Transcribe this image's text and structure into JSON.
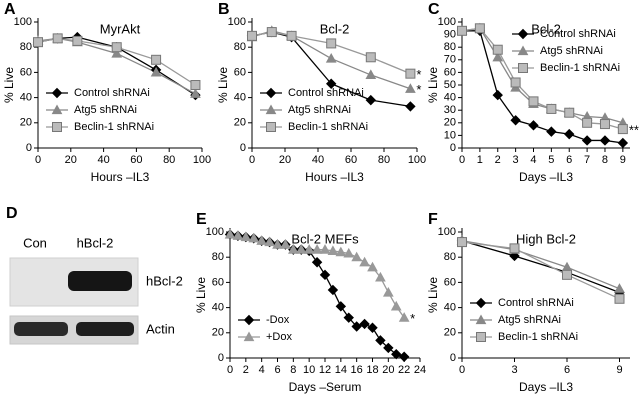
{
  "chart_data": [
    {
      "type": "line",
      "label": "A",
      "title": "MyrAkt",
      "xlabel": "Hours –IL3",
      "ylabel": "% Live",
      "x": [
        0,
        12,
        24,
        48,
        72,
        96
      ],
      "xlim": [
        0,
        100
      ],
      "xticks": [
        0,
        20,
        40,
        60,
        80,
        100
      ],
      "ylim": [
        0,
        100
      ],
      "yticks": [
        0,
        20,
        40,
        60,
        80,
        100
      ],
      "legend": "lower left",
      "series": [
        {
          "name": "Control shRNAi",
          "color": "#000000",
          "marker": "diamond",
          "values": [
            84,
            87,
            88,
            80,
            62,
            42
          ]
        },
        {
          "name": "Atg5 shRNAi",
          "color": "#888888",
          "marker": "triangle",
          "values": [
            85,
            87,
            84,
            75,
            60,
            43
          ]
        },
        {
          "name": "Beclin-1 shRNAi",
          "color": "#bbbbbb",
          "marker": "square",
          "values": [
            84,
            87,
            85,
            80,
            70,
            50
          ]
        }
      ]
    },
    {
      "type": "line",
      "label": "B",
      "title": "Bcl-2",
      "xlabel": "Hours –IL3",
      "ylabel": "% Live",
      "x": [
        0,
        12,
        24,
        48,
        72,
        96
      ],
      "xlim": [
        0,
        100
      ],
      "xticks": [
        0,
        20,
        40,
        60,
        80,
        100
      ],
      "ylim": [
        0,
        100
      ],
      "yticks": [
        0,
        20,
        40,
        60,
        80,
        100
      ],
      "legend": "lower left",
      "annotations": [
        "*",
        "*"
      ],
      "series": [
        {
          "name": "Control shRNAi",
          "color": "#000000",
          "marker": "diamond",
          "values": [
            89,
            92,
            88,
            51,
            38,
            33
          ]
        },
        {
          "name": "Atg5 shRNAi",
          "color": "#888888",
          "marker": "triangle",
          "values": [
            88,
            93,
            89,
            71,
            58,
            47
          ]
        },
        {
          "name": "Beclin-1 shRNAi",
          "color": "#bbbbbb",
          "marker": "square",
          "values": [
            89,
            92,
            89,
            83,
            72,
            59
          ]
        }
      ]
    },
    {
      "type": "line",
      "label": "C",
      "title": "Bcl-2",
      "xlabel": "Days –IL3",
      "ylabel": "% Live",
      "x": [
        0,
        1,
        2,
        3,
        4,
        5,
        6,
        7,
        8,
        9
      ],
      "xlim": [
        0,
        9.4
      ],
      "xticks": [
        0,
        1,
        2,
        3,
        4,
        5,
        6,
        7,
        8,
        9
      ],
      "ylim": [
        0,
        100
      ],
      "yticks": [
        0,
        10,
        20,
        30,
        40,
        50,
        60,
        70,
        80,
        90,
        100
      ],
      "legend": "upper right",
      "annotations": [
        "**"
      ],
      "series": [
        {
          "name": "Control shRNAi",
          "color": "#000000",
          "marker": "diamond",
          "values": [
            93,
            93,
            42,
            22,
            18,
            13,
            11,
            6,
            6,
            4
          ]
        },
        {
          "name": "Atg5 shRNAi",
          "color": "#888888",
          "marker": "triangle",
          "values": [
            93,
            95,
            72,
            48,
            35,
            31,
            28,
            25,
            24,
            20
          ]
        },
        {
          "name": "Beclin-1 shRNAi",
          "color": "#bbbbbb",
          "marker": "square",
          "values": [
            93,
            95,
            78,
            52,
            37,
            31,
            28,
            20,
            19,
            15
          ]
        }
      ]
    },
    {
      "type": "line",
      "label": "E",
      "title": "Bcl-2 MEFs",
      "xlabel": "Days –Serum",
      "ylabel": "% Live",
      "x": [
        0,
        1,
        2,
        3,
        4,
        5,
        6,
        7,
        8,
        9,
        10,
        11,
        12,
        13,
        14,
        15,
        16,
        17,
        18,
        19,
        20,
        21,
        22
      ],
      "xlim": [
        0,
        24
      ],
      "xticks": [
        0,
        2,
        4,
        6,
        8,
        10,
        12,
        14,
        16,
        18,
        20,
        22,
        24
      ],
      "ylim": [
        0,
        100
      ],
      "yticks": [
        0,
        20,
        40,
        60,
        80,
        100
      ],
      "legend": "lower left",
      "annotations": [
        "*"
      ],
      "series": [
        {
          "name": "-Dox",
          "color": "#000000",
          "marker": "diamond",
          "values": [
            98,
            97,
            96,
            95,
            93,
            92,
            90,
            90,
            86,
            86,
            85,
            76,
            66,
            54,
            41,
            32,
            25,
            27,
            24,
            14,
            8,
            3,
            1
          ]
        },
        {
          "name": "+Dox",
          "color": "#999999",
          "marker": "triangle",
          "values": [
            98,
            97,
            96,
            95,
            93,
            92,
            90,
            90,
            86,
            86,
            86,
            86,
            86,
            85,
            84,
            83,
            80,
            76,
            72,
            64,
            52,
            41,
            32
          ]
        }
      ]
    },
    {
      "type": "line",
      "label": "F",
      "title": "High Bcl-2",
      "xlabel": "Days –IL3",
      "ylabel": "% Live",
      "x": [
        0,
        3,
        6,
        9
      ],
      "xlim": [
        0,
        9.6
      ],
      "xticks": [
        0,
        3,
        6,
        9
      ],
      "ylim": [
        0,
        100
      ],
      "yticks": [
        0,
        20,
        40,
        60,
        80,
        100
      ],
      "legend": "lower left",
      "series": [
        {
          "name": "Control shRNAi",
          "color": "#000000",
          "marker": "diamond",
          "values": [
            93,
            81,
            68,
            52
          ]
        },
        {
          "name": "Atg5 shRNAi",
          "color": "#888888",
          "marker": "triangle",
          "values": [
            93,
            86,
            72,
            55
          ]
        },
        {
          "name": "Beclin-1 shRNAi",
          "color": "#bbbbbb",
          "marker": "square",
          "values": [
            92,
            87,
            66,
            47
          ]
        }
      ]
    }
  ],
  "blot": {
    "label": "D",
    "lanes": [
      "Con",
      "hBcl-2"
    ],
    "bands": [
      "hBcl-2",
      "Actin"
    ]
  }
}
